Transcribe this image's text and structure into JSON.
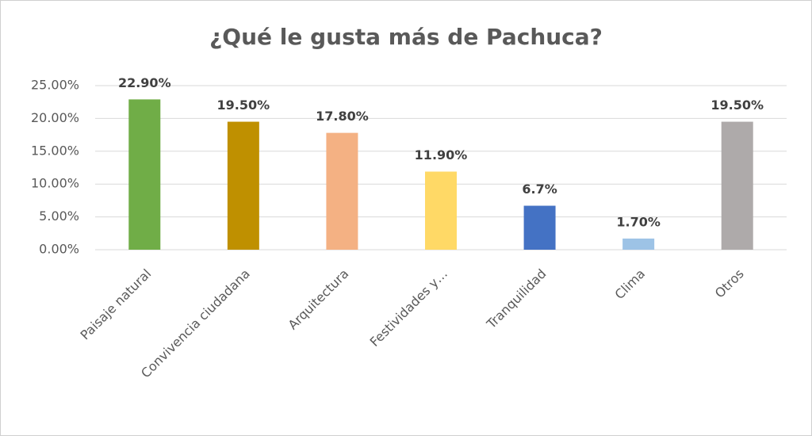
{
  "chart_data": {
    "type": "bar",
    "title": "¿Qué le gusta más de Pachuca?",
    "categories": [
      "Paisaje natural",
      "Convivencia ciudadana",
      "Arquitectura",
      "Festividades y…",
      "Tranquilidad",
      "Clima",
      "Otros"
    ],
    "values": [
      22.9,
      19.5,
      17.8,
      11.9,
      6.7,
      1.7,
      19.5
    ],
    "value_labels": [
      "22.90%",
      "19.50%",
      "17.80%",
      "11.90%",
      "6.7%",
      "1.70%",
      "19.50%"
    ],
    "colors": [
      "#70ad47",
      "#bf9000",
      "#f4b183",
      "#ffd966",
      "#4472c4",
      "#9dc3e6",
      "#aeaaaa"
    ],
    "ylim": [
      0,
      25
    ],
    "yticks": [
      {
        "value": 0,
        "label": "0.00%"
      },
      {
        "value": 5,
        "label": "5.00%"
      },
      {
        "value": 10,
        "label": "10.00%"
      },
      {
        "value": 15,
        "label": "15.00%"
      },
      {
        "value": 20,
        "label": "20.00%"
      },
      {
        "value": 25,
        "label": "25.00%"
      }
    ],
    "grid": true
  }
}
